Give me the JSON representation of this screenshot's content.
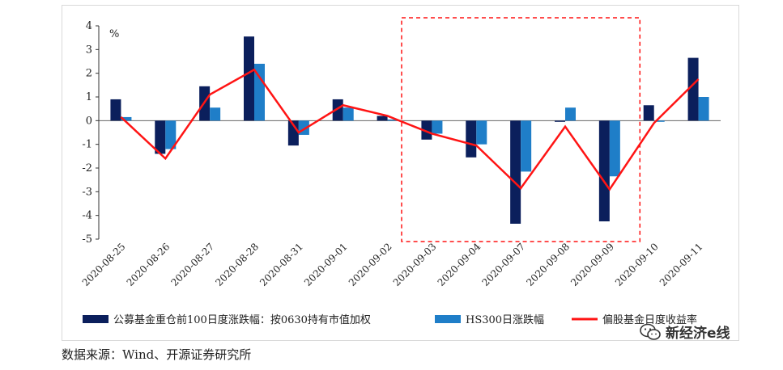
{
  "chart_data": {
    "type": "bar",
    "unit": "%",
    "ylim": [
      -5,
      4
    ],
    "yticks": [
      4,
      3,
      2,
      1,
      0,
      -1,
      -2,
      -3,
      -4,
      -5
    ],
    "categories": [
      "2020-08-25",
      "2020-08-26",
      "2020-08-27",
      "2020-08-28",
      "2020-08-31",
      "2020-09-01",
      "2020-09-02",
      "2020-09-03",
      "2020-09-04",
      "2020-09-07",
      "2020-09-08",
      "2020-09-09",
      "2020-09-10",
      "2020-09-11"
    ],
    "series": [
      {
        "name": "公募基金重仓前100日度涨跌幅：按0630持有市值加权",
        "kind": "bar",
        "color": "#0b1f5c",
        "values": [
          0.9,
          -1.4,
          1.45,
          3.55,
          -1.05,
          0.9,
          0.2,
          -0.8,
          -1.55,
          -4.35,
          -0.05,
          -4.25,
          0.65,
          2.65
        ]
      },
      {
        "name": "HS300日涨跌幅",
        "kind": "bar",
        "color": "#1f7ec8",
        "values": [
          0.15,
          -1.2,
          0.55,
          2.4,
          -0.6,
          0.55,
          0.05,
          -0.55,
          -1.0,
          -2.15,
          0.55,
          -2.35,
          -0.05,
          1.0
        ]
      },
      {
        "name": "偏股基金日度收益率",
        "kind": "line",
        "color": "#ff1414",
        "values": [
          0.15,
          -1.6,
          1.1,
          2.15,
          -0.5,
          0.65,
          0.2,
          -0.55,
          -1.05,
          -2.85,
          -0.25,
          -2.9,
          -0.1,
          1.75
        ]
      }
    ],
    "highlight": {
      "from": "2020-09-03",
      "to": "2020-09-09",
      "color": "#ff1414",
      "style": "dashed"
    }
  },
  "legend": [
    {
      "label": "公募基金重仓前100日度涨跌幅：按0630持有市值加权"
    },
    {
      "label": "HS300日涨跌幅"
    },
    {
      "label": "偏股基金日度收益率"
    }
  ],
  "source_text": "数据来源：Wind、开源证券研究所",
  "watermark": {
    "text": "新经济e线",
    "icon": "wechat-icon"
  }
}
